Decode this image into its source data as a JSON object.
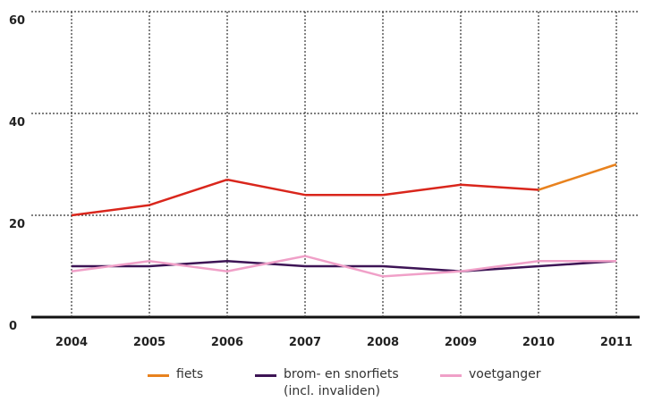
{
  "chart_data": {
    "type": "line",
    "x": [
      2004,
      2005,
      2006,
      2007,
      2008,
      2009,
      2010,
      2011
    ],
    "series": [
      {
        "name": "fiets",
        "color": "#e8821e",
        "segment_colors": [
          "#d9261c",
          "#d9261c",
          "#d9261c",
          "#d9261c",
          "#d9261c",
          "#d9261c",
          "#e8821e"
        ],
        "values": [
          20,
          22,
          27,
          24,
          24,
          26,
          25,
          30
        ]
      },
      {
        "name": "brom- en snorfiets\n(incl. invaliden)",
        "color": "#3d1455",
        "values": [
          10,
          10,
          11,
          10,
          10,
          9,
          10,
          11
        ]
      },
      {
        "name": "voetganger",
        "color": "#f0a0c8",
        "values": [
          9,
          11,
          9,
          12,
          8,
          9,
          11,
          11
        ]
      }
    ],
    "ylim": [
      0,
      60
    ],
    "yticks": [
      0,
      20,
      40,
      60
    ],
    "grid": true
  }
}
